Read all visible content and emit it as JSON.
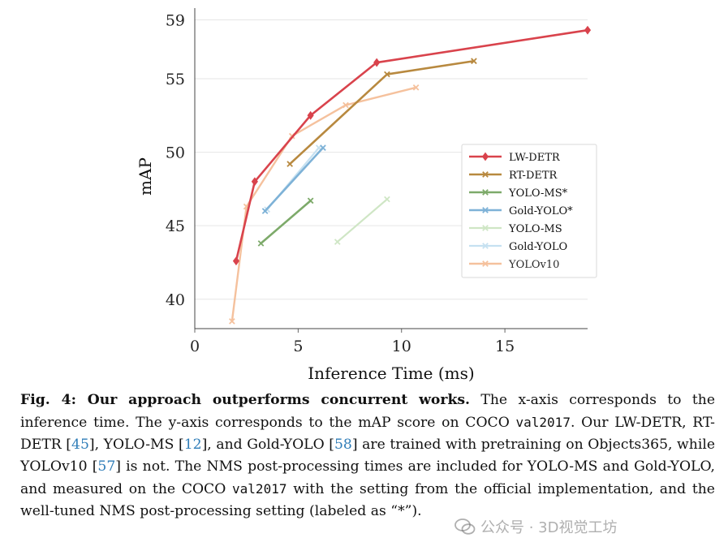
{
  "chart_data": {
    "type": "line",
    "xlabel": "Inference Time (ms)",
    "ylabel": "mAP",
    "xlim": [
      0,
      19
    ],
    "ylim": [
      38,
      59.8
    ],
    "xticks": [
      0,
      5,
      10,
      15
    ],
    "yticks": [
      40,
      45,
      50,
      55,
      59
    ],
    "grid": "y-only",
    "legend_position": "right",
    "series": [
      {
        "name": "LW-DETR",
        "color": "#d9434c",
        "marker": "diamond",
        "width": 2.6,
        "opacity": 1,
        "x": [
          2.0,
          2.9,
          5.6,
          8.8,
          19.0
        ],
        "y": [
          42.6,
          48.0,
          52.5,
          56.1,
          58.3
        ]
      },
      {
        "name": "RT-DETR",
        "color": "#b8893f",
        "marker": "x",
        "width": 2.6,
        "opacity": 1,
        "x": [
          4.6,
          9.3,
          13.5
        ],
        "y": [
          49.2,
          55.3,
          56.2
        ]
      },
      {
        "name": "YOLO-MS*",
        "color": "#7daa6a",
        "marker": "x",
        "width": 2.6,
        "opacity": 1,
        "x": [
          3.2,
          5.6
        ],
        "y": [
          43.8,
          46.7
        ]
      },
      {
        "name": "Gold-YOLO*",
        "color": "#7eb2d7",
        "marker": "x",
        "width": 2.6,
        "opacity": 1,
        "x": [
          3.4,
          6.2
        ],
        "y": [
          46.0,
          50.3
        ]
      },
      {
        "name": "YOLO-MS",
        "color": "#cfe6c5",
        "marker": "x",
        "width": 2.2,
        "opacity": 1,
        "x": [
          6.9,
          9.3
        ],
        "y": [
          43.9,
          46.8
        ]
      },
      {
        "name": "Gold-YOLO",
        "color": "#c6e1f1",
        "marker": "x",
        "width": 2.2,
        "opacity": 1,
        "x": [
          3.5,
          6.0
        ],
        "y": [
          46.1,
          50.3
        ]
      },
      {
        "name": "YOLOv10",
        "color": "#f4bb93",
        "marker": "x",
        "width": 2.4,
        "opacity": 0.9,
        "x": [
          1.8,
          2.5,
          4.7,
          7.3,
          10.7
        ],
        "y": [
          38.5,
          46.3,
          51.1,
          53.2,
          54.4
        ]
      }
    ]
  },
  "caption": {
    "label": "Fig. 4: Our approach outperforms concurrent works.",
    "t1": " The x-axis corresponds to the inference time. The y-axis corresponds to the mAP score on COCO ",
    "val_a": "val2017",
    "t2": ". Our LW-DETR, RT-DETR [",
    "ref1": "45",
    "t3": "], YOLO-MS [",
    "ref2": "12",
    "t4": "], and Gold-YOLO [",
    "ref3": "58",
    "t5": "] are trained with pretraining on Objects365, while YOLOv10 [",
    "ref4": "57",
    "t6": "] is not. The NMS post-processing times are included for YOLO-MS and Gold-YOLO, and measured on the COCO ",
    "val_b": "val2017",
    "t7": " with the setting from the official implementation, and the well-tuned NMS post-processing setting (labeled as “*”)."
  },
  "watermark": {
    "text": "公众号 · 3D视觉工坊"
  }
}
